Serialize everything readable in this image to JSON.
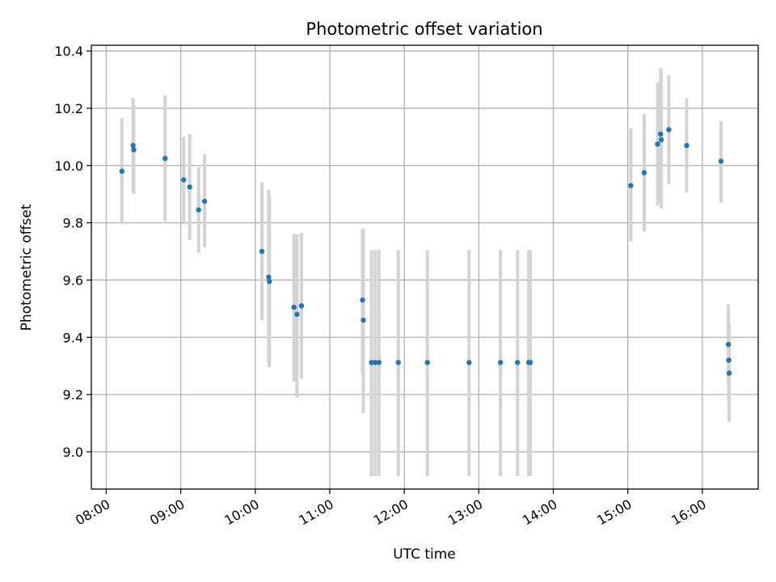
{
  "chart_data": {
    "type": "scatter",
    "title": "Photometric offset variation",
    "xlabel": "UTC time",
    "ylabel": "Photometric offset",
    "grid": true,
    "x_unit": "hours (UTC)",
    "xlim": [
      7.8,
      16.75
    ],
    "ylim": [
      8.87,
      10.42
    ],
    "x_ticks": [
      {
        "value": 8,
        "label": "08:00"
      },
      {
        "value": 9,
        "label": "09:00"
      },
      {
        "value": 10,
        "label": "10:00"
      },
      {
        "value": 11,
        "label": "11:00"
      },
      {
        "value": 12,
        "label": "12:00"
      },
      {
        "value": 13,
        "label": "13:00"
      },
      {
        "value": 14,
        "label": "14:00"
      },
      {
        "value": 15,
        "label": "15:00"
      },
      {
        "value": 16,
        "label": "16:00"
      }
    ],
    "y_ticks": [
      {
        "value": 9.0,
        "label": "9.0"
      },
      {
        "value": 9.2,
        "label": "9.2"
      },
      {
        "value": 9.4,
        "label": "9.4"
      },
      {
        "value": 9.6,
        "label": "9.6"
      },
      {
        "value": 9.8,
        "label": "9.8"
      },
      {
        "value": 10.0,
        "label": "10.0"
      },
      {
        "value": 10.2,
        "label": "10.2"
      },
      {
        "value": 10.4,
        "label": "10.4"
      }
    ],
    "point_color": "#1f77b4",
    "errorbar_color": "#d3d3d3",
    "points": [
      {
        "x": 8.21,
        "y": 9.98,
        "lo": 9.795,
        "hi": 10.165
      },
      {
        "x": 8.36,
        "y": 10.07,
        "lo": 9.905,
        "hi": 10.235
      },
      {
        "x": 8.37,
        "y": 10.055,
        "lo": 9.9,
        "hi": 10.21
      },
      {
        "x": 8.79,
        "y": 10.025,
        "lo": 9.805,
        "hi": 10.245
      },
      {
        "x": 9.04,
        "y": 9.95,
        "lo": 9.795,
        "hi": 10.1
      },
      {
        "x": 9.12,
        "y": 9.925,
        "lo": 9.74,
        "hi": 10.11
      },
      {
        "x": 9.24,
        "y": 9.845,
        "lo": 9.695,
        "hi": 9.995
      },
      {
        "x": 9.32,
        "y": 9.875,
        "lo": 9.715,
        "hi": 10.04
      },
      {
        "x": 10.09,
        "y": 9.7,
        "lo": 9.46,
        "hi": 9.94
      },
      {
        "x": 10.18,
        "y": 9.61,
        "lo": 9.31,
        "hi": 9.915
      },
      {
        "x": 10.19,
        "y": 9.595,
        "lo": 9.295,
        "hi": 9.895
      },
      {
        "x": 10.52,
        "y": 9.505,
        "lo": 9.245,
        "hi": 9.76
      },
      {
        "x": 10.56,
        "y": 9.48,
        "lo": 9.19,
        "hi": 9.76
      },
      {
        "x": 10.62,
        "y": 9.51,
        "lo": 9.255,
        "hi": 9.765
      },
      {
        "x": 11.44,
        "y": 9.53,
        "lo": 9.275,
        "hi": 9.78
      },
      {
        "x": 11.45,
        "y": 9.46,
        "lo": 9.135,
        "hi": 9.78
      },
      {
        "x": 11.56,
        "y": 9.312,
        "lo": 8.915,
        "hi": 9.705
      },
      {
        "x": 11.61,
        "y": 9.312,
        "lo": 8.915,
        "hi": 9.705
      },
      {
        "x": 11.66,
        "y": 9.312,
        "lo": 8.915,
        "hi": 9.705
      },
      {
        "x": 11.92,
        "y": 9.312,
        "lo": 8.915,
        "hi": 9.705
      },
      {
        "x": 12.31,
        "y": 9.312,
        "lo": 8.915,
        "hi": 9.705
      },
      {
        "x": 12.87,
        "y": 9.312,
        "lo": 8.915,
        "hi": 9.705
      },
      {
        "x": 13.29,
        "y": 9.312,
        "lo": 8.915,
        "hi": 9.705
      },
      {
        "x": 13.52,
        "y": 9.312,
        "lo": 8.915,
        "hi": 9.705
      },
      {
        "x": 13.67,
        "y": 9.312,
        "lo": 8.915,
        "hi": 9.705
      },
      {
        "x": 13.69,
        "y": 9.312,
        "lo": 8.915,
        "hi": 9.705
      },
      {
        "x": 15.04,
        "y": 9.93,
        "lo": 9.735,
        "hi": 10.13
      },
      {
        "x": 15.22,
        "y": 9.975,
        "lo": 9.77,
        "hi": 10.18
      },
      {
        "x": 15.4,
        "y": 10.075,
        "lo": 9.86,
        "hi": 10.29
      },
      {
        "x": 15.44,
        "y": 10.11,
        "lo": 9.87,
        "hi": 10.34
      },
      {
        "x": 15.45,
        "y": 10.09,
        "lo": 9.85,
        "hi": 10.335
      },
      {
        "x": 15.55,
        "y": 10.125,
        "lo": 9.935,
        "hi": 10.315
      },
      {
        "x": 15.79,
        "y": 10.07,
        "lo": 9.905,
        "hi": 10.235
      },
      {
        "x": 16.25,
        "y": 10.015,
        "lo": 9.87,
        "hi": 10.155
      },
      {
        "x": 16.35,
        "y": 9.375,
        "lo": 9.235,
        "hi": 9.515
      },
      {
        "x": 16.355,
        "y": 9.32,
        "lo": 9.17,
        "hi": 9.45
      },
      {
        "x": 16.36,
        "y": 9.275,
        "lo": 9.105,
        "hi": 9.445
      }
    ]
  }
}
